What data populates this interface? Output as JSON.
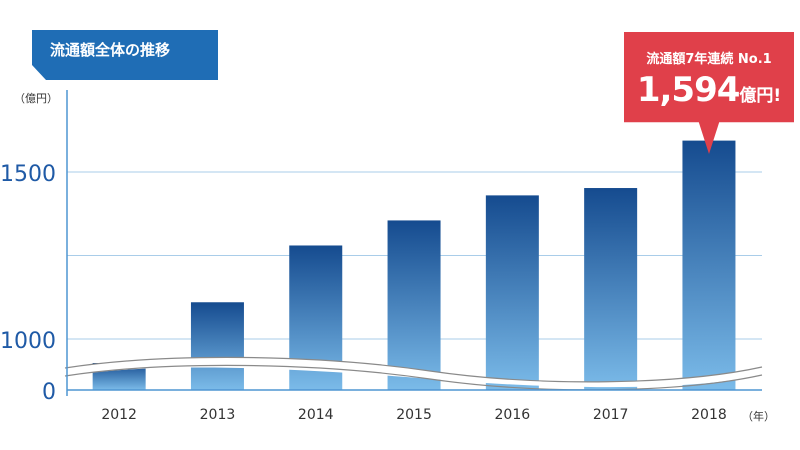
{
  "badge": {
    "title": "流通額全体の推移"
  },
  "units": {
    "y": "（億円）",
    "x": "（年）"
  },
  "callout": {
    "line1": "流通額7年連続 No.1",
    "value": "1,594",
    "unit": "億円",
    "suffix": "!"
  },
  "colors": {
    "bar_top": "#154b8f",
    "bar_bottom": "#7bbbe9",
    "axis": "#4f95d2",
    "grid": "#a9cde9",
    "callout": "#e0404a",
    "badge": "#1f6db5"
  },
  "chart_data": {
    "type": "bar",
    "title": "流通額全体の推移",
    "ylabel": "（億円）",
    "xlabel": "（年）",
    "categories": [
      "2012",
      "2013",
      "2014",
      "2015",
      "2016",
      "2017",
      "2018"
    ],
    "values": [
      975,
      1110,
      1280,
      1355,
      1430,
      1452,
      1594
    ],
    "y_ticks": [
      0,
      1000,
      1500
    ],
    "y_tick_labels": [
      "0",
      "1000",
      "1500"
    ],
    "axis_break": true,
    "ylim": [
      0,
      1750
    ],
    "legend": "none"
  }
}
